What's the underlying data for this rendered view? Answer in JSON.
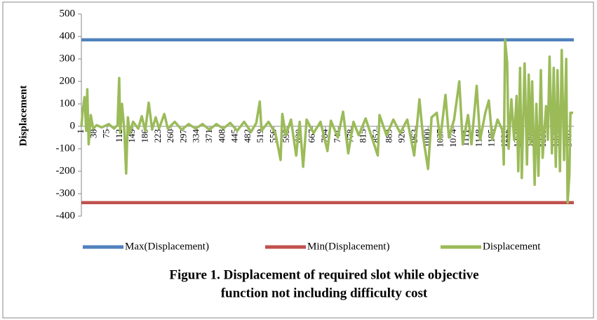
{
  "chart_data": {
    "type": "line",
    "y_label": "Displacement",
    "caption": [
      "Figure 1. Displacement of required slot while objective",
      "function not including difficulty cost"
    ],
    "ylim": [
      -400,
      500
    ],
    "yticks": [
      -400,
      -300,
      -200,
      -100,
      0,
      100,
      200,
      300,
      400,
      500
    ],
    "xlim": [
      1,
      1420
    ],
    "xticks": [
      1,
      38,
      75,
      112,
      149,
      186,
      223,
      260,
      297,
      334,
      371,
      408,
      445,
      482,
      519,
      556,
      593,
      630,
      667,
      704,
      741,
      778,
      815,
      852,
      889,
      926,
      963,
      1000,
      1037,
      1074,
      1111,
      1148,
      1185,
      1222,
      1259,
      1296,
      1333,
      1370,
      1407
    ],
    "legend": "bottom",
    "series": [
      {
        "name": "Max(Displacement)",
        "color": "#4f81bd",
        "x": [
          1,
          1420
        ],
        "values": [
          385,
          385
        ]
      },
      {
        "name": "Min(Displacement)",
        "color": "#c0504d",
        "x": [
          1,
          1420
        ],
        "values": [
          -340,
          -340
        ]
      },
      {
        "name": "Displacement",
        "color": "#9bbb59",
        "x": [
          1,
          5,
          10,
          15,
          18,
          22,
          28,
          35,
          45,
          60,
          80,
          95,
          105,
          110,
          113,
          118,
          125,
          130,
          135,
          140,
          150,
          165,
          175,
          185,
          195,
          205,
          215,
          225,
          240,
          250,
          270,
          290,
          310,
          330,
          350,
          370,
          390,
          410,
          430,
          450,
          470,
          490,
          505,
          515,
          520,
          540,
          560,
          575,
          580,
          590,
          605,
          620,
          630,
          640,
          650,
          670,
          690,
          710,
          720,
          740,
          755,
          770,
          785,
          800,
          820,
          840,
          855,
          860,
          880,
          900,
          920,
          940,
          960,
          975,
          985,
          1000,
          1010,
          1025,
          1035,
          1050,
          1060,
          1075,
          1090,
          1100,
          1115,
          1125,
          1140,
          1150,
          1165,
          1175,
          1185,
          1200,
          1215,
          1218,
          1222,
          1228,
          1232,
          1240,
          1248,
          1255,
          1260,
          1265,
          1270,
          1278,
          1285,
          1290,
          1295,
          1300,
          1307,
          1312,
          1318,
          1325,
          1330,
          1340,
          1345,
          1350,
          1357,
          1362,
          1368,
          1373,
          1380,
          1385,
          1392,
          1398,
          1402,
          1407,
          1410,
          1418
        ],
        "values": [
          0,
          70,
          130,
          -20,
          165,
          -80,
          50,
          -10,
          5,
          -5,
          10,
          -10,
          5,
          215,
          -30,
          100,
          -20,
          -210,
          40,
          -30,
          20,
          -10,
          45,
          -20,
          105,
          -15,
          40,
          -10,
          55,
          -10,
          20,
          -15,
          10,
          -10,
          10,
          -15,
          10,
          -10,
          15,
          -20,
          20,
          -25,
          15,
          110,
          -20,
          20,
          -30,
          -150,
          55,
          -40,
          30,
          -130,
          20,
          -180,
          30,
          -30,
          20,
          -110,
          25,
          -50,
          65,
          -120,
          20,
          -40,
          35,
          -60,
          -130,
          50,
          -40,
          30,
          -30,
          30,
          -130,
          120,
          -40,
          -190,
          40,
          60,
          -60,
          140,
          -50,
          30,
          200,
          -80,
          50,
          -80,
          180,
          -60,
          60,
          115,
          -60,
          30,
          -20,
          -170,
          385,
          280,
          -100,
          120,
          -60,
          135,
          -200,
          260,
          -230,
          280,
          -170,
          230,
          -80,
          200,
          -260,
          100,
          -220,
          250,
          -140,
          90,
          -60,
          310,
          -120,
          260,
          -180,
          250,
          -200,
          340,
          -150,
          300,
          -340,
          -220,
          60,
          60
        ]
      }
    ]
  }
}
